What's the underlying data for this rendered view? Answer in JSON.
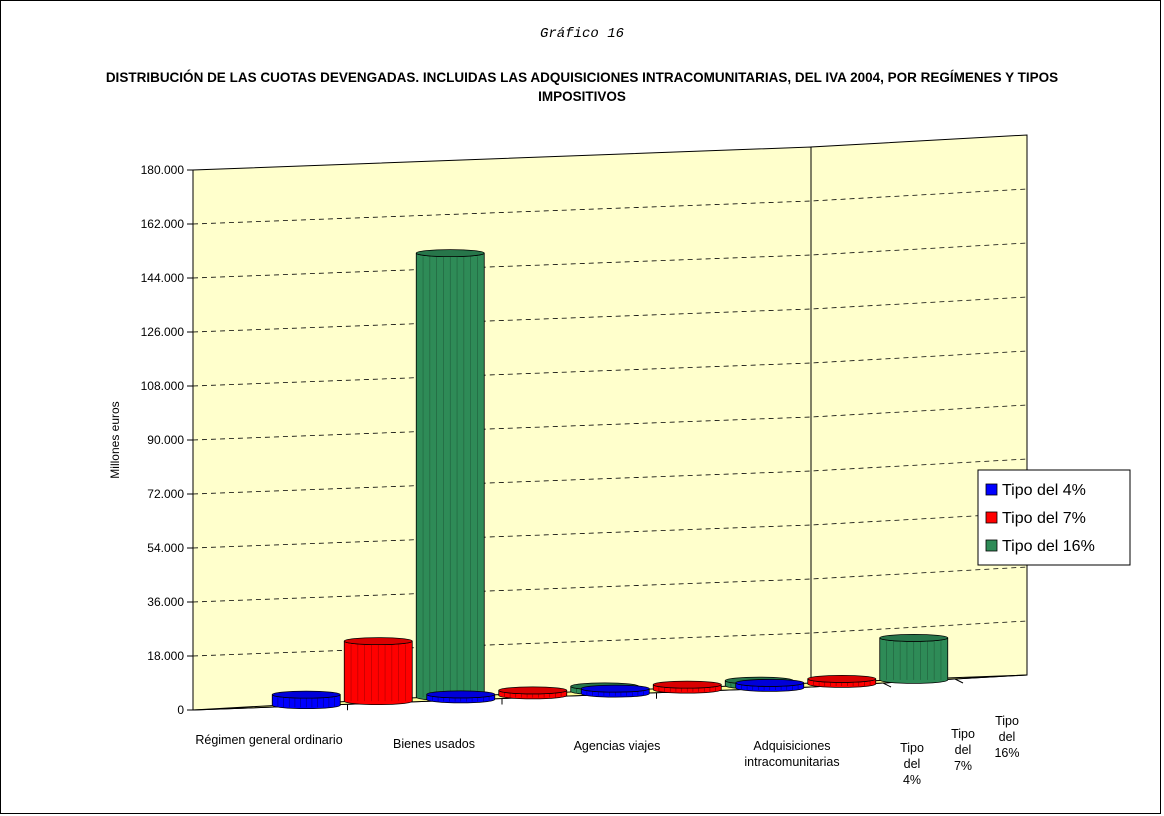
{
  "caption": "Gráfico 16",
  "title": "DISTRIBUCIÓN DE LAS CUOTAS DEVENGADAS. INCLUIDAS LAS ADQUISICIONES INTRACOMUNITARIAS, DEL IVA 2004, POR REGÍMENES Y TIPOS IMPOSITIVOS",
  "colors": {
    "wall": "#ffffcc",
    "floor": "#ffff99",
    "blue": "#0000ff",
    "red": "#ff0000",
    "green": "#2e8b57"
  },
  "chart_data": {
    "type": "bar",
    "subtype": "3d-cylinder",
    "ylabel": "Millones euros",
    "ylim": [
      0,
      180000
    ],
    "yticks": [
      "0",
      "18.000",
      "36.000",
      "54.000",
      "72.000",
      "90.000",
      "108.000",
      "126.000",
      "144.000",
      "162.000",
      "180.000"
    ],
    "categories": [
      "Régimen general ordinario",
      "Bienes usados",
      "Agencias viajes",
      "Adquisiciones intracomunitarias"
    ],
    "series_axis_labels": [
      [
        "Tipo",
        "del",
        "4%"
      ],
      [
        "Tipo",
        "del",
        "7%"
      ],
      [
        "Tipo",
        "del",
        "16%"
      ]
    ],
    "series": [
      {
        "name": "Tipo del 4%",
        "color": "#0000ff",
        "values": [
          3500,
          0,
          0,
          0
        ]
      },
      {
        "name": "Tipo del 7%",
        "color": "#ff0000",
        "values": [
          20000,
          0,
          0,
          0
        ]
      },
      {
        "name": "Tipo del 16%",
        "color": "#2e8b57",
        "values": [
          148000,
          0,
          0,
          14000
        ]
      }
    ],
    "grid": true,
    "legend": "right"
  }
}
